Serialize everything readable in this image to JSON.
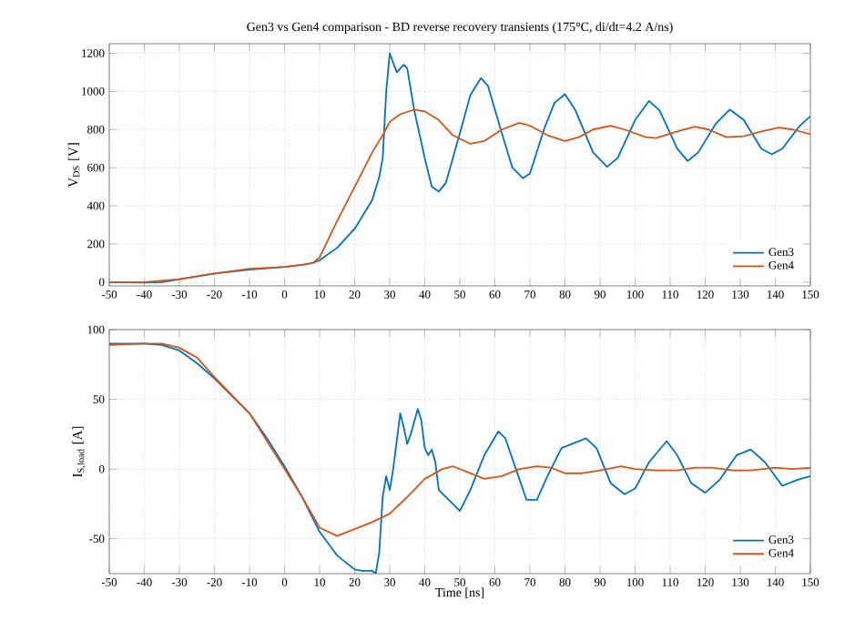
{
  "chart_data": [
    {
      "type": "line",
      "title": "Gen3 vs Gen4 comparison - BD reverse recovery transients (175°C, di/dt=4.2 A/ns)",
      "ylabel": "V$_{DS}$ [V]",
      "xlim": [
        -50,
        150
      ],
      "xticks": [
        -50,
        -40,
        -30,
        -20,
        -10,
        0,
        10,
        20,
        30,
        40,
        50,
        60,
        70,
        80,
        90,
        100,
        110,
        120,
        130,
        140,
        150
      ],
      "ylim": [
        -20,
        1250
      ],
      "yticks": [
        0,
        200,
        400,
        600,
        800,
        1000,
        1200
      ],
      "grid": true,
      "legend": "bottom right",
      "line_style": "solid",
      "series": [
        {
          "name": "Gen3",
          "color": "#0072bd",
          "x": [
            -50,
            -40,
            -35,
            -30,
            -20,
            -10,
            0,
            5,
            8,
            10,
            15,
            20,
            25,
            27,
            28,
            29,
            30,
            31,
            32,
            34,
            35,
            37,
            40,
            42,
            44,
            46,
            50,
            53,
            56,
            58,
            62,
            65,
            68,
            70,
            74,
            77,
            80,
            83,
            88,
            92,
            95,
            100,
            104,
            107,
            112,
            115,
            118,
            123,
            127,
            131,
            136,
            139,
            142,
            147,
            150
          ],
          "values": [
            0,
            -3,
            0,
            15,
            45,
            65,
            80,
            90,
            100,
            115,
            180,
            280,
            430,
            550,
            650,
            1000,
            1200,
            1150,
            1100,
            1140,
            1120,
            900,
            650,
            500,
            475,
            520,
            780,
            980,
            1070,
            1030,
            780,
            600,
            545,
            570,
            800,
            940,
            985,
            900,
            680,
            605,
            650,
            850,
            950,
            900,
            700,
            635,
            680,
            830,
            905,
            850,
            700,
            670,
            700,
            820,
            870
          ]
        },
        {
          "name": "Gen4",
          "color": "#d95319",
          "x": [
            -50,
            -40,
            -30,
            -20,
            -10,
            0,
            5,
            8,
            10,
            15,
            20,
            25,
            28,
            30,
            33,
            37,
            40,
            44,
            48,
            53,
            57,
            62,
            67,
            70,
            75,
            80,
            84,
            88,
            93,
            97,
            103,
            106,
            112,
            117,
            121,
            126,
            131,
            136,
            141,
            145,
            150
          ],
          "values": [
            0,
            0,
            15,
            45,
            70,
            80,
            90,
            100,
            130,
            320,
            500,
            680,
            770,
            840,
            880,
            905,
            895,
            850,
            770,
            725,
            740,
            800,
            835,
            820,
            770,
            740,
            760,
            800,
            820,
            800,
            760,
            755,
            790,
            815,
            800,
            760,
            765,
            790,
            810,
            800,
            775
          ]
        }
      ]
    },
    {
      "type": "line",
      "xlabel": "Time [ns]",
      "ylabel": "I$_{S,load}$ [A]",
      "xlim": [
        -50,
        150
      ],
      "xticks": [
        -50,
        -40,
        -30,
        -20,
        -10,
        0,
        10,
        20,
        30,
        40,
        50,
        60,
        70,
        80,
        90,
        100,
        110,
        120,
        130,
        140,
        150
      ],
      "ylim": [
        -75,
        100
      ],
      "yticks": [
        -50,
        0,
        50,
        100
      ],
      "grid": true,
      "legend": "bottom right",
      "line_style": "solid",
      "series": [
        {
          "name": "Gen3",
          "color": "#0072bd",
          "x": [
            -50,
            -40,
            -35,
            -30,
            -25,
            -20,
            -10,
            -5,
            0,
            5,
            10,
            15,
            20,
            22,
            25,
            26,
            27,
            28,
            29,
            30,
            31,
            33,
            34,
            35,
            36,
            38,
            39,
            40,
            41,
            42,
            43,
            44,
            46,
            48,
            50,
            53,
            57,
            61,
            63,
            66,
            69,
            72,
            75,
            79,
            86,
            89,
            93,
            97,
            100,
            104,
            109,
            112,
            116,
            120,
            124,
            129,
            133,
            137,
            142,
            146,
            150
          ],
          "values": [
            90,
            90,
            89,
            85,
            76,
            65,
            40,
            22,
            2,
            -20,
            -45,
            -62,
            -72,
            -73,
            -73,
            -75,
            -60,
            -20,
            -5,
            -15,
            0,
            40,
            30,
            18,
            25,
            43,
            35,
            15,
            10,
            14,
            5,
            -15,
            -20,
            -25,
            -30,
            -15,
            10,
            27,
            22,
            0,
            -22,
            -22,
            -5,
            15,
            22,
            15,
            -10,
            -18,
            -14,
            5,
            20,
            10,
            -10,
            -17,
            -8,
            10,
            14,
            5,
            -12,
            -8,
            -5
          ]
        },
        {
          "name": "Gen4",
          "color": "#d95319",
          "x": [
            -50,
            -40,
            -35,
            -30,
            -25,
            -20,
            -10,
            0,
            5,
            10,
            15,
            20,
            25,
            30,
            35,
            40,
            45,
            48,
            52,
            57,
            62,
            67,
            72,
            76,
            80,
            85,
            90,
            96,
            100,
            106,
            112,
            117,
            122,
            128,
            133,
            140,
            145,
            150
          ],
          "values": [
            89,
            90,
            90,
            87,
            80,
            66,
            40,
            0,
            -20,
            -42,
            -48,
            -43,
            -38,
            -32,
            -20,
            -7,
            0,
            2,
            -2,
            -7,
            -5,
            0,
            2,
            1,
            -3,
            -3,
            -1,
            2,
            0,
            -1,
            -1,
            1,
            1,
            -1,
            -1,
            1,
            0,
            1
          ]
        }
      ]
    }
  ]
}
